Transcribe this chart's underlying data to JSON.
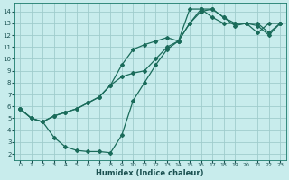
{
  "xlabel": "Humidex (Indice chaleur)",
  "bg_color": "#c8ecec",
  "grid_color": "#a0cccc",
  "line_color": "#1a6b5a",
  "marker": "D",
  "markersize": 2.0,
  "linewidth": 0.9,
  "xlim": [
    -0.5,
    23.5
  ],
  "ylim": [
    1.5,
    14.7
  ],
  "xticks": [
    0,
    1,
    2,
    3,
    4,
    5,
    6,
    7,
    8,
    9,
    10,
    11,
    12,
    13,
    14,
    15,
    16,
    17,
    18,
    19,
    20,
    21,
    22,
    23
  ],
  "yticks": [
    2,
    3,
    4,
    5,
    6,
    7,
    8,
    9,
    10,
    11,
    12,
    13,
    14
  ],
  "line1_x": [
    0,
    1,
    2,
    3,
    4,
    5,
    6,
    7,
    8,
    9,
    10,
    11,
    12,
    13,
    14,
    15,
    16,
    17,
    18,
    19,
    20,
    21,
    22,
    23
  ],
  "line1_y": [
    5.8,
    5.0,
    4.7,
    3.4,
    2.6,
    2.3,
    2.2,
    2.2,
    2.1,
    3.6,
    6.5,
    8.0,
    9.5,
    10.8,
    11.5,
    14.2,
    14.2,
    13.5,
    13.0,
    13.0,
    13.0,
    12.2,
    13.0,
    13.0
  ],
  "line2_x": [
    0,
    1,
    2,
    3,
    4,
    5,
    6,
    7,
    8,
    9,
    10,
    11,
    12,
    13,
    14,
    15,
    16,
    17,
    18,
    19,
    20,
    21,
    22,
    23
  ],
  "line2_y": [
    5.8,
    5.0,
    4.7,
    5.2,
    5.5,
    5.8,
    6.3,
    6.8,
    7.8,
    9.5,
    10.8,
    11.2,
    11.5,
    11.8,
    11.5,
    13.0,
    14.2,
    14.2,
    13.5,
    13.0,
    13.0,
    13.0,
    12.2,
    13.0
  ],
  "line3_x": [
    0,
    1,
    2,
    3,
    4,
    5,
    6,
    7,
    8,
    9,
    10,
    11,
    12,
    13,
    14,
    15,
    16,
    17,
    18,
    19,
    20,
    21,
    22,
    23
  ],
  "line3_y": [
    5.8,
    5.0,
    4.7,
    5.2,
    5.5,
    5.8,
    6.3,
    6.8,
    7.8,
    8.5,
    8.8,
    9.0,
    10.0,
    11.0,
    11.5,
    13.0,
    14.0,
    14.2,
    13.5,
    12.8,
    13.0,
    12.8,
    12.0,
    13.0
  ]
}
